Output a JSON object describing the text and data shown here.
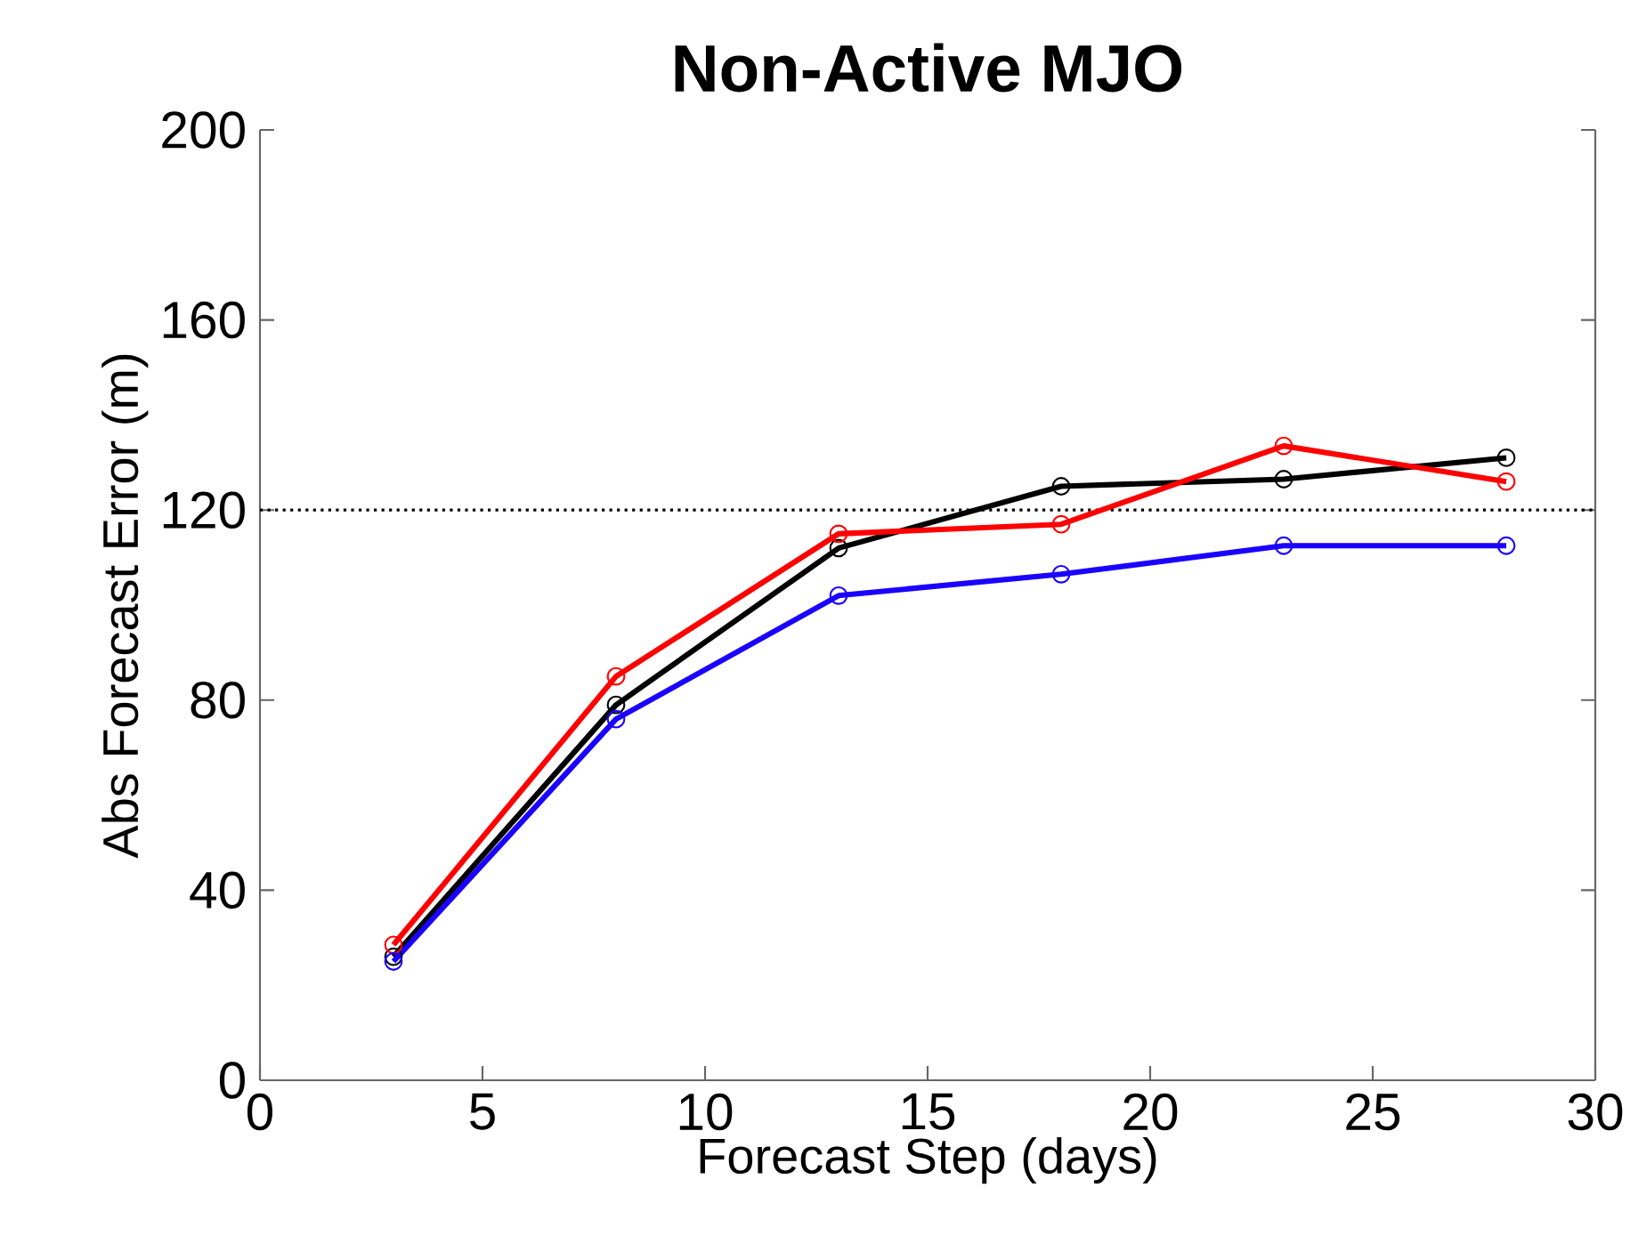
{
  "chart_data": {
    "type": "line",
    "title": "Non-Active MJO",
    "xlabel": "Forecast Step (days)",
    "ylabel": "Abs Forecast Error (m)",
    "x": [
      3,
      8,
      13,
      18,
      23,
      28
    ],
    "series": [
      {
        "color": "#000000",
        "values": [
          26,
          79,
          112,
          125,
          126.5,
          131
        ]
      },
      {
        "color": "#ff0000",
        "values": [
          28.5,
          85,
          115,
          117,
          133.5,
          126
        ]
      },
      {
        "color": "#1a00ff",
        "values": [
          25,
          76,
          102,
          106.5,
          112.5,
          112.5
        ]
      }
    ],
    "xlim": [
      0,
      30
    ],
    "xticks": [
      0,
      5,
      10,
      15,
      20,
      25,
      30
    ],
    "ylim": [
      0,
      200
    ],
    "yticks": [
      0,
      40,
      80,
      120,
      160,
      200
    ],
    "ref_lines": [
      {
        "axis": "y",
        "value": 120,
        "line_style": "dotted",
        "color": "#000000"
      }
    ],
    "marker": "circle",
    "line_style": "solid"
  }
}
